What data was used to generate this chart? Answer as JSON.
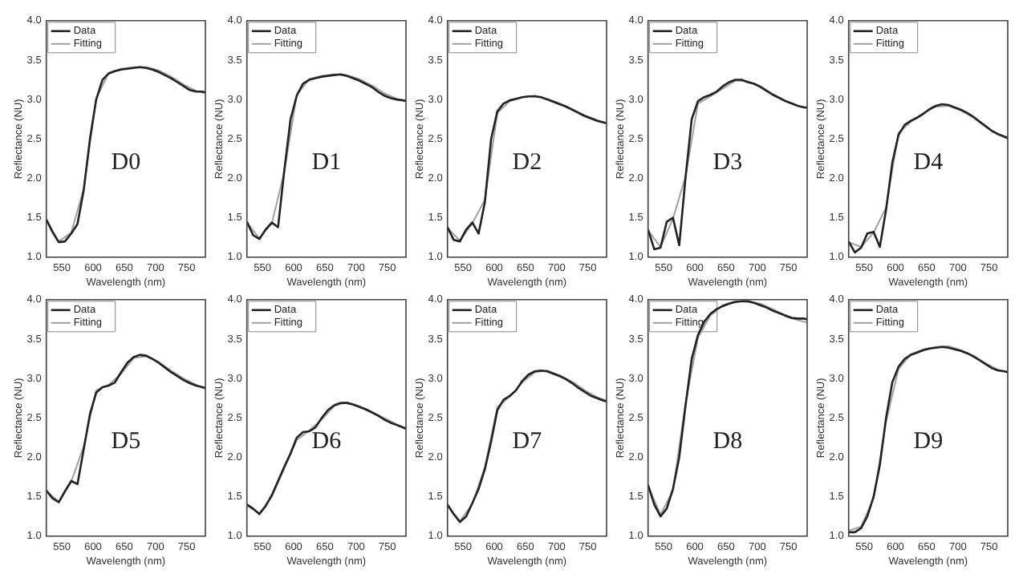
{
  "chart_data": [
    {
      "type": "line",
      "xlabel": "Wavelength (nm)",
      "ylabel": "Reflectance (NU)",
      "xlim": [
        525,
        780
      ],
      "xticks": [
        550,
        600,
        650,
        700,
        750
      ],
      "ylim": [
        1,
        4
      ],
      "yticks": [
        {
          "value": 1,
          "label": "1.0"
        },
        {
          "value": 1.5,
          "label": "1.5"
        },
        {
          "value": 2,
          "label": "2.0"
        },
        {
          "value": 2.5,
          "label": "2.5"
        },
        {
          "value": 3,
          "label": "3.0"
        },
        {
          "value": 3.5,
          "label": "3.5"
        },
        {
          "value": 4,
          "label": "4.0"
        }
      ],
      "legend": "top left",
      "marker": "none",
      "annotations": [
        "D0"
      ],
      "x": [
        525,
        535,
        545,
        555,
        565,
        575,
        585,
        595,
        605,
        615,
        625,
        635,
        645,
        655,
        665,
        675,
        685,
        695,
        705,
        715,
        725,
        735,
        745,
        755,
        765,
        775,
        780
      ],
      "series": [
        {
          "name": "Data",
          "color": "#222222",
          "values": [
            1.48,
            1.32,
            1.19,
            1.2,
            1.3,
            1.42,
            1.85,
            2.5,
            3.0,
            3.25,
            3.33,
            3.36,
            3.38,
            3.39,
            3.4,
            3.41,
            3.4,
            3.38,
            3.35,
            3.31,
            3.27,
            3.22,
            3.17,
            3.12,
            3.1,
            3.1,
            3.09
          ]
        },
        {
          "name": "Fitting",
          "color": "#a0a0a0",
          "x": [
            525,
            545,
            565,
            585,
            605,
            625,
            645,
            665,
            685,
            705,
            725,
            745,
            765,
            780
          ],
          "values": [
            1.47,
            1.2,
            1.31,
            1.87,
            3.01,
            3.34,
            3.39,
            3.41,
            3.41,
            3.37,
            3.29,
            3.19,
            3.11,
            3.08
          ]
        }
      ]
    },
    {
      "type": "line",
      "xlabel": "Wavelength (nm)",
      "ylabel": "Reflectance (NU)",
      "xlim": [
        525,
        780
      ],
      "xticks": [
        550,
        600,
        650,
        700,
        750
      ],
      "ylim": [
        1,
        4
      ],
      "yticks": [
        {
          "value": 1,
          "label": "1.0"
        },
        {
          "value": 1.5,
          "label": "1.5"
        },
        {
          "value": 2,
          "label": "2.0"
        },
        {
          "value": 2.5,
          "label": "2.5"
        },
        {
          "value": 3,
          "label": "3.0"
        },
        {
          "value": 3.5,
          "label": "3.5"
        },
        {
          "value": 4,
          "label": "4.0"
        }
      ],
      "legend": "top left",
      "marker": "none",
      "annotations": [
        "D1"
      ],
      "x": [
        525,
        535,
        545,
        555,
        565,
        575,
        585,
        595,
        605,
        615,
        625,
        635,
        645,
        655,
        665,
        675,
        685,
        695,
        705,
        715,
        725,
        735,
        745,
        755,
        765,
        775,
        780
      ],
      "series": [
        {
          "name": "Data",
          "color": "#222222",
          "values": [
            1.45,
            1.28,
            1.23,
            1.35,
            1.44,
            1.38,
            2.1,
            2.75,
            3.05,
            3.2,
            3.25,
            3.27,
            3.29,
            3.3,
            3.31,
            3.32,
            3.3,
            3.27,
            3.24,
            3.2,
            3.16,
            3.1,
            3.05,
            3.02,
            3.0,
            2.99,
            2.98
          ]
        },
        {
          "name": "Fitting",
          "color": "#a0a0a0",
          "x": [
            525,
            545,
            565,
            585,
            605,
            625,
            645,
            665,
            685,
            705,
            725,
            745,
            765,
            780
          ],
          "values": [
            1.44,
            1.24,
            1.43,
            2.08,
            3.06,
            3.26,
            3.3,
            3.32,
            3.31,
            3.26,
            3.18,
            3.08,
            3.01,
            2.98
          ]
        }
      ]
    },
    {
      "type": "line",
      "xlabel": "Wavelength (nm)",
      "ylabel": "Reflectance (NU)",
      "xlim": [
        525,
        780
      ],
      "xticks": [
        550,
        600,
        650,
        700,
        750
      ],
      "ylim": [
        1,
        4
      ],
      "yticks": [
        {
          "value": 1,
          "label": "1.0"
        },
        {
          "value": 1.5,
          "label": "1.5"
        },
        {
          "value": 2,
          "label": "2.0"
        },
        {
          "value": 2.5,
          "label": "2.5"
        },
        {
          "value": 3,
          "label": "3.0"
        },
        {
          "value": 3.5,
          "label": "3.5"
        },
        {
          "value": 4,
          "label": "4.0"
        }
      ],
      "legend": "top left",
      "marker": "none",
      "annotations": [
        "D2"
      ],
      "x": [
        525,
        535,
        545,
        555,
        565,
        575,
        585,
        595,
        605,
        615,
        625,
        635,
        645,
        655,
        665,
        675,
        685,
        695,
        705,
        715,
        725,
        735,
        745,
        755,
        765,
        775,
        780
      ],
      "series": [
        {
          "name": "Data",
          "color": "#222222",
          "values": [
            1.38,
            1.22,
            1.2,
            1.35,
            1.44,
            1.3,
            1.7,
            2.5,
            2.85,
            2.95,
            2.99,
            3.01,
            3.03,
            3.04,
            3.04,
            3.03,
            3.0,
            2.97,
            2.94,
            2.91,
            2.87,
            2.83,
            2.79,
            2.76,
            2.73,
            2.71,
            2.7
          ]
        },
        {
          "name": "Fitting",
          "color": "#a0a0a0",
          "x": [
            525,
            545,
            565,
            585,
            605,
            625,
            645,
            665,
            685,
            705,
            725,
            745,
            765,
            780
          ],
          "values": [
            1.37,
            1.21,
            1.43,
            1.73,
            2.83,
            2.98,
            3.03,
            3.05,
            3.01,
            2.95,
            2.88,
            2.8,
            2.74,
            2.7
          ]
        }
      ]
    },
    {
      "type": "line",
      "xlabel": "Wavelength (nm)",
      "ylabel": "Reflectance (NU)",
      "xlim": [
        525,
        780
      ],
      "xticks": [
        550,
        600,
        650,
        700,
        750
      ],
      "ylim": [
        1,
        4
      ],
      "yticks": [
        {
          "value": 1,
          "label": "1.0"
        },
        {
          "value": 1.5,
          "label": "1.5"
        },
        {
          "value": 2,
          "label": "2.0"
        },
        {
          "value": 2.5,
          "label": "2.5"
        },
        {
          "value": 3,
          "label": "3.0"
        },
        {
          "value": 3.5,
          "label": "3.5"
        },
        {
          "value": 4,
          "label": "4.0"
        }
      ],
      "legend": "top left",
      "marker": "none",
      "annotations": [
        "D3"
      ],
      "x": [
        525,
        535,
        545,
        555,
        565,
        575,
        585,
        595,
        605,
        615,
        625,
        635,
        645,
        655,
        665,
        675,
        685,
        695,
        705,
        715,
        725,
        735,
        745,
        755,
        765,
        775,
        780
      ],
      "series": [
        {
          "name": "Data",
          "color": "#222222",
          "values": [
            1.35,
            1.1,
            1.12,
            1.45,
            1.5,
            1.15,
            2.0,
            2.75,
            2.98,
            3.03,
            3.06,
            3.1,
            3.17,
            3.22,
            3.25,
            3.25,
            3.22,
            3.2,
            3.16,
            3.11,
            3.06,
            3.02,
            2.98,
            2.95,
            2.92,
            2.9,
            2.9
          ]
        },
        {
          "name": "Fitting",
          "color": "#a0a0a0",
          "x": [
            525,
            545,
            565,
            585,
            605,
            625,
            645,
            665,
            685,
            705,
            725,
            745,
            765,
            780
          ],
          "values": [
            1.34,
            1.13,
            1.49,
            2.02,
            2.95,
            3.04,
            3.14,
            3.24,
            3.23,
            3.17,
            3.07,
            2.99,
            2.92,
            2.89
          ]
        }
      ]
    },
    {
      "type": "line",
      "xlabel": "Wavelength (nm)",
      "ylabel": "Reflectance (NU)",
      "xlim": [
        525,
        780
      ],
      "xticks": [
        550,
        600,
        650,
        700,
        750
      ],
      "ylim": [
        1,
        4
      ],
      "yticks": [
        {
          "value": 1,
          "label": "1.0"
        },
        {
          "value": 1.5,
          "label": "1.5"
        },
        {
          "value": 2,
          "label": "2.0"
        },
        {
          "value": 2.5,
          "label": "2.5"
        },
        {
          "value": 3,
          "label": "3.0"
        },
        {
          "value": 3.5,
          "label": "3.5"
        },
        {
          "value": 4,
          "label": "4.0"
        }
      ],
      "legend": "top left",
      "marker": "none",
      "annotations": [
        "D4"
      ],
      "x": [
        525,
        535,
        545,
        555,
        565,
        575,
        585,
        595,
        605,
        615,
        625,
        635,
        645,
        655,
        665,
        675,
        685,
        695,
        705,
        715,
        725,
        735,
        745,
        755,
        765,
        775,
        780
      ],
      "series": [
        {
          "name": "Data",
          "color": "#222222",
          "values": [
            1.2,
            1.06,
            1.12,
            1.3,
            1.32,
            1.13,
            1.6,
            2.2,
            2.55,
            2.68,
            2.73,
            2.77,
            2.82,
            2.88,
            2.92,
            2.94,
            2.93,
            2.9,
            2.87,
            2.83,
            2.78,
            2.72,
            2.66,
            2.6,
            2.56,
            2.53,
            2.51
          ]
        },
        {
          "name": "Fitting",
          "color": "#a0a0a0",
          "x": [
            525,
            545,
            565,
            585,
            605,
            625,
            645,
            665,
            685,
            705,
            725,
            745,
            765,
            780
          ],
          "values": [
            1.19,
            1.13,
            1.31,
            1.63,
            2.58,
            2.72,
            2.83,
            2.91,
            2.92,
            2.86,
            2.77,
            2.65,
            2.55,
            2.5
          ]
        }
      ]
    },
    {
      "type": "line",
      "xlabel": "Wavelength (nm)",
      "ylabel": "Reflectance (NU)",
      "xlim": [
        525,
        780
      ],
      "xticks": [
        550,
        600,
        650,
        700,
        750
      ],
      "ylim": [
        1,
        4
      ],
      "yticks": [
        {
          "value": 1,
          "label": "1.0"
        },
        {
          "value": 1.5,
          "label": "1.5"
        },
        {
          "value": 2,
          "label": "2.0"
        },
        {
          "value": 2.5,
          "label": "2.5"
        },
        {
          "value": 3,
          "label": "3.0"
        },
        {
          "value": 3.5,
          "label": "3.5"
        },
        {
          "value": 4,
          "label": "4.0"
        }
      ],
      "legend": "top left",
      "marker": "none",
      "annotations": [
        "D5"
      ],
      "x": [
        525,
        535,
        545,
        555,
        565,
        575,
        585,
        595,
        605,
        615,
        625,
        635,
        645,
        655,
        665,
        675,
        685,
        695,
        705,
        715,
        725,
        735,
        745,
        755,
        765,
        775,
        780
      ],
      "series": [
        {
          "name": "Data",
          "color": "#222222",
          "values": [
            1.58,
            1.48,
            1.43,
            1.57,
            1.7,
            1.66,
            2.1,
            2.55,
            2.82,
            2.89,
            2.91,
            2.95,
            3.08,
            3.2,
            3.27,
            3.3,
            3.29,
            3.25,
            3.2,
            3.14,
            3.08,
            3.03,
            2.98,
            2.94,
            2.91,
            2.89,
            2.88
          ]
        },
        {
          "name": "Fitting",
          "color": "#a0a0a0",
          "x": [
            525,
            545,
            565,
            585,
            605,
            625,
            645,
            665,
            685,
            705,
            725,
            745,
            765,
            780
          ],
          "values": [
            1.57,
            1.44,
            1.69,
            2.14,
            2.85,
            2.92,
            3.06,
            3.26,
            3.28,
            3.21,
            3.1,
            3.0,
            2.92,
            2.87
          ]
        }
      ]
    },
    {
      "type": "line",
      "xlabel": "Wavelength (nm)",
      "ylabel": "Reflectance (NU)",
      "xlim": [
        525,
        780
      ],
      "xticks": [
        550,
        600,
        650,
        700,
        750
      ],
      "ylim": [
        1,
        4
      ],
      "yticks": [
        {
          "value": 1,
          "label": "1.0"
        },
        {
          "value": 1.5,
          "label": "1.5"
        },
        {
          "value": 2,
          "label": "2.0"
        },
        {
          "value": 2.5,
          "label": "2.5"
        },
        {
          "value": 3,
          "label": "3.0"
        },
        {
          "value": 3.5,
          "label": "3.5"
        },
        {
          "value": 4,
          "label": "4.0"
        }
      ],
      "legend": "top left",
      "marker": "none",
      "annotations": [
        "D6"
      ],
      "x": [
        525,
        535,
        545,
        555,
        565,
        575,
        585,
        595,
        605,
        615,
        625,
        635,
        645,
        655,
        665,
        675,
        685,
        695,
        705,
        715,
        725,
        735,
        745,
        755,
        765,
        775,
        780
      ],
      "series": [
        {
          "name": "Data",
          "color": "#222222",
          "values": [
            1.4,
            1.35,
            1.28,
            1.38,
            1.52,
            1.7,
            1.88,
            2.05,
            2.25,
            2.32,
            2.33,
            2.38,
            2.5,
            2.6,
            2.66,
            2.69,
            2.69,
            2.67,
            2.64,
            2.61,
            2.57,
            2.53,
            2.48,
            2.44,
            2.41,
            2.38,
            2.36
          ]
        },
        {
          "name": "Fitting",
          "color": "#a0a0a0",
          "x": [
            525,
            545,
            565,
            585,
            605,
            625,
            645,
            665,
            685,
            705,
            725,
            745,
            765,
            780
          ],
          "values": [
            1.39,
            1.29,
            1.5,
            1.86,
            2.22,
            2.34,
            2.48,
            2.65,
            2.7,
            2.65,
            2.58,
            2.5,
            2.42,
            2.37
          ]
        }
      ]
    },
    {
      "type": "line",
      "xlabel": "Wavelength (nm)",
      "ylabel": "Reflectance (NU)",
      "xlim": [
        525,
        780
      ],
      "xticks": [
        550,
        600,
        650,
        700,
        750
      ],
      "ylim": [
        1,
        4
      ],
      "yticks": [
        {
          "value": 1,
          "label": "1.0"
        },
        {
          "value": 1.5,
          "label": "1.5"
        },
        {
          "value": 2,
          "label": "2.0"
        },
        {
          "value": 2.5,
          "label": "2.5"
        },
        {
          "value": 3,
          "label": "3.0"
        },
        {
          "value": 3.5,
          "label": "3.5"
        },
        {
          "value": 4,
          "label": "4.0"
        }
      ],
      "legend": "top left",
      "marker": "none",
      "annotations": [
        "D7"
      ],
      "x": [
        525,
        535,
        545,
        555,
        565,
        575,
        585,
        595,
        605,
        615,
        625,
        635,
        645,
        655,
        665,
        675,
        685,
        695,
        705,
        715,
        725,
        735,
        745,
        755,
        765,
        775,
        780
      ],
      "series": [
        {
          "name": "Data",
          "color": "#222222",
          "values": [
            1.4,
            1.28,
            1.18,
            1.25,
            1.42,
            1.6,
            1.85,
            2.2,
            2.6,
            2.73,
            2.78,
            2.85,
            2.97,
            3.05,
            3.09,
            3.1,
            3.09,
            3.06,
            3.03,
            2.99,
            2.94,
            2.88,
            2.83,
            2.78,
            2.75,
            2.72,
            2.71
          ]
        },
        {
          "name": "Fitting",
          "color": "#a0a0a0",
          "x": [
            525,
            545,
            565,
            585,
            605,
            625,
            645,
            665,
            685,
            705,
            725,
            745,
            765,
            780
          ],
          "values": [
            1.39,
            1.19,
            1.41,
            1.88,
            2.64,
            2.77,
            2.95,
            3.08,
            3.1,
            3.04,
            2.96,
            2.85,
            2.76,
            2.72
          ]
        }
      ]
    },
    {
      "type": "line",
      "xlabel": "Wavelength (nm)",
      "ylabel": "Reflectance (NU)",
      "xlim": [
        525,
        780
      ],
      "xticks": [
        550,
        600,
        650,
        700,
        750
      ],
      "ylim": [
        1,
        4
      ],
      "yticks": [
        {
          "value": 1,
          "label": "1.0"
        },
        {
          "value": 1.5,
          "label": "1.5"
        },
        {
          "value": 2,
          "label": "2.0"
        },
        {
          "value": 2.5,
          "label": "2.5"
        },
        {
          "value": 3,
          "label": "3.0"
        },
        {
          "value": 3.5,
          "label": "3.5"
        },
        {
          "value": 4,
          "label": "4.0"
        }
      ],
      "legend": "top left",
      "marker": "none",
      "annotations": [
        "D8"
      ],
      "x": [
        525,
        535,
        545,
        555,
        565,
        575,
        585,
        595,
        605,
        615,
        625,
        635,
        645,
        655,
        665,
        675,
        685,
        695,
        705,
        715,
        725,
        735,
        745,
        755,
        765,
        775,
        780
      ],
      "series": [
        {
          "name": "Data",
          "color": "#222222",
          "values": [
            1.65,
            1.4,
            1.25,
            1.35,
            1.6,
            2.0,
            2.65,
            3.25,
            3.55,
            3.72,
            3.82,
            3.88,
            3.92,
            3.95,
            3.97,
            3.98,
            3.98,
            3.96,
            3.93,
            3.9,
            3.86,
            3.83,
            3.8,
            3.77,
            3.76,
            3.76,
            3.75
          ]
        },
        {
          "name": "Fitting",
          "color": "#a0a0a0",
          "x": [
            525,
            545,
            565,
            585,
            605,
            625,
            645,
            665,
            685,
            705,
            725,
            745,
            765,
            780
          ],
          "values": [
            1.64,
            1.27,
            1.58,
            2.68,
            3.52,
            3.8,
            3.93,
            3.98,
            3.97,
            3.95,
            3.88,
            3.79,
            3.74,
            3.71
          ]
        }
      ]
    },
    {
      "type": "line",
      "xlabel": "Wavelength (nm)",
      "ylabel": "Reflectance (NU)",
      "xlim": [
        525,
        780
      ],
      "xticks": [
        550,
        600,
        650,
        700,
        750
      ],
      "ylim": [
        1,
        4
      ],
      "yticks": [
        {
          "value": 1,
          "label": "1.0"
        },
        {
          "value": 1.5,
          "label": "1.5"
        },
        {
          "value": 2,
          "label": "2.0"
        },
        {
          "value": 2.5,
          "label": "2.5"
        },
        {
          "value": 3,
          "label": "3.0"
        },
        {
          "value": 3.5,
          "label": "3.5"
        },
        {
          "value": 4,
          "label": "4.0"
        }
      ],
      "legend": "top left",
      "marker": "none",
      "annotations": [
        "D9"
      ],
      "x": [
        525,
        535,
        545,
        555,
        565,
        575,
        585,
        595,
        605,
        615,
        625,
        635,
        645,
        655,
        665,
        675,
        685,
        695,
        705,
        715,
        725,
        735,
        745,
        755,
        765,
        775,
        780
      ],
      "series": [
        {
          "name": "Data",
          "color": "#222222",
          "values": [
            1.05,
            1.05,
            1.1,
            1.25,
            1.5,
            1.9,
            2.5,
            2.95,
            3.15,
            3.25,
            3.3,
            3.33,
            3.36,
            3.38,
            3.39,
            3.4,
            3.39,
            3.37,
            3.35,
            3.32,
            3.28,
            3.23,
            3.18,
            3.13,
            3.1,
            3.09,
            3.08
          ]
        },
        {
          "name": "Fitting",
          "color": "#a0a0a0",
          "x": [
            525,
            545,
            565,
            585,
            605,
            625,
            645,
            665,
            685,
            705,
            725,
            745,
            765,
            780
          ],
          "values": [
            1.07,
            1.12,
            1.48,
            2.45,
            3.12,
            3.31,
            3.37,
            3.4,
            3.41,
            3.36,
            3.29,
            3.19,
            3.11,
            3.08
          ]
        }
      ]
    }
  ]
}
